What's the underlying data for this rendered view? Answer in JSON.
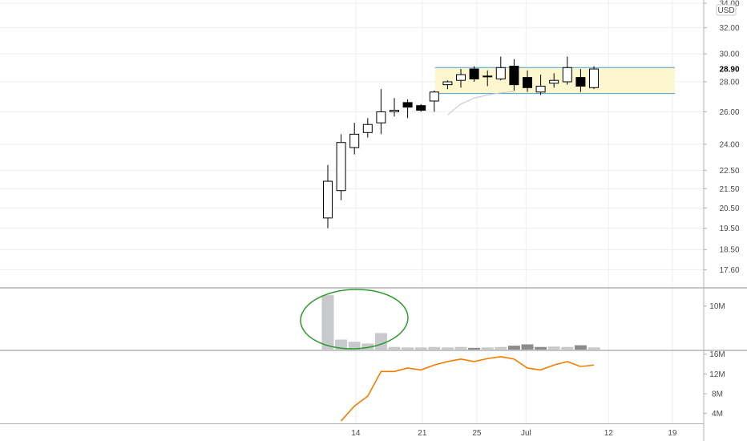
{
  "chart_data": {
    "type": "candlestick",
    "currency_label": "USD",
    "x_tick_labels": [
      "14",
      "21",
      "25",
      "Jul",
      "12",
      "19"
    ],
    "price_axis": {
      "ticks": [
        "34.00",
        "32.00",
        "30.00",
        "28.00",
        "26.00",
        "24.00",
        "22.50",
        "21.50",
        "20.50",
        "19.50",
        "18.50",
        "17.60"
      ],
      "range": [
        17.2,
        34.0
      ],
      "scale": "log",
      "current_price_label": "28.90"
    },
    "candles": [
      {
        "open": 20.0,
        "high": 22.8,
        "low": 19.5,
        "close": 21.9
      },
      {
        "open": 21.4,
        "high": 24.6,
        "low": 20.9,
        "close": 24.1
      },
      {
        "open": 23.8,
        "high": 25.3,
        "low": 23.4,
        "close": 24.6
      },
      {
        "open": 24.7,
        "high": 25.6,
        "low": 24.4,
        "close": 25.2
      },
      {
        "open": 25.3,
        "high": 27.5,
        "low": 24.6,
        "close": 26.0
      },
      {
        "open": 26.0,
        "high": 26.9,
        "low": 25.7,
        "close": 26.1
      },
      {
        "open": 26.6,
        "high": 26.8,
        "low": 25.6,
        "close": 26.3
      },
      {
        "open": 26.4,
        "high": 26.5,
        "low": 26.0,
        "close": 26.1
      },
      {
        "open": 26.7,
        "high": 27.4,
        "low": 26.0,
        "close": 27.3
      },
      {
        "open": 27.8,
        "high": 28.1,
        "low": 27.5,
        "close": 28.0
      },
      {
        "open": 28.1,
        "high": 28.9,
        "low": 27.6,
        "close": 28.5
      },
      {
        "open": 28.9,
        "high": 29.1,
        "low": 28.0,
        "close": 28.2
      },
      {
        "open": 28.4,
        "high": 28.8,
        "low": 27.7,
        "close": 28.4
      },
      {
        "open": 28.2,
        "high": 29.8,
        "low": 28.1,
        "close": 29.0
      },
      {
        "open": 29.1,
        "high": 29.6,
        "low": 27.4,
        "close": 27.8
      },
      {
        "open": 28.3,
        "high": 28.8,
        "low": 27.3,
        "close": 27.6
      },
      {
        "open": 27.3,
        "high": 28.5,
        "low": 27.1,
        "close": 27.7
      },
      {
        "open": 27.9,
        "high": 28.6,
        "low": 27.6,
        "close": 28.1
      },
      {
        "open": 28.0,
        "high": 29.8,
        "low": 27.8,
        "close": 29.0
      },
      {
        "open": 28.3,
        "high": 28.9,
        "low": 27.3,
        "close": 27.7
      },
      {
        "open": 27.6,
        "high": 29.1,
        "low": 27.5,
        "close": 28.9
      }
    ],
    "range_box": {
      "top": 29.0,
      "bottom": 27.2
    },
    "moving_average": [
      {
        "i": 9,
        "value": 25.8
      },
      {
        "i": 10,
        "value": 26.5
      },
      {
        "i": 11,
        "value": 26.9
      },
      {
        "i": 12,
        "value": 27.1
      },
      {
        "i": 13,
        "value": 27.25
      },
      {
        "i": 14,
        "value": 27.35
      }
    ],
    "volume_axis": {
      "ticks": [
        "10M"
      ],
      "range": [
        0,
        14
      ]
    },
    "volume": [
      {
        "value": 12.5,
        "down": false
      },
      {
        "value": 2.3,
        "down": false
      },
      {
        "value": 1.8,
        "down": false
      },
      {
        "value": 1.4,
        "down": false
      },
      {
        "value": 3.8,
        "down": false
      },
      {
        "value": 0.6,
        "down": false
      },
      {
        "value": 0.5,
        "down": false
      },
      {
        "value": 0.5,
        "down": false
      },
      {
        "value": 0.6,
        "down": false
      },
      {
        "value": 0.5,
        "down": false
      },
      {
        "value": 0.6,
        "down": false
      },
      {
        "value": 0.4,
        "down": true
      },
      {
        "value": 0.5,
        "down": false
      },
      {
        "value": 0.6,
        "down": false
      },
      {
        "value": 0.9,
        "down": true
      },
      {
        "value": 1.2,
        "down": true
      },
      {
        "value": 0.6,
        "down": true
      },
      {
        "value": 0.7,
        "down": false
      },
      {
        "value": 0.6,
        "down": false
      },
      {
        "value": 1.0,
        "down": true
      },
      {
        "value": 0.5,
        "down": false
      }
    ],
    "indicator_axis": {
      "ticks": [
        "16M",
        "12M",
        "8M",
        "4M"
      ],
      "range": [
        2.0,
        16.6
      ]
    },
    "indicator_line": [
      2.5,
      5.5,
      7.5,
      12.5,
      12.5,
      13.2,
      12.8,
      13.8,
      14.5,
      15.0,
      14.5,
      15.1,
      15.5,
      15.0,
      13.2,
      12.8,
      13.8,
      14.5,
      13.5,
      13.8
    ],
    "colors": {
      "up_body": "#ffffff",
      "down_body": "#000000",
      "candle_outline": "#000000",
      "range_fill": "#fdf7cf",
      "range_border": "#4a9fd4",
      "ma_line": "#c9cedb",
      "volume_up": "#c8c9cc",
      "volume_down": "#8a8b8d",
      "volume_circle": "#2e9b2e",
      "indicator_line": "#f57c00",
      "grid": "#eeeeee",
      "pane_separator": "#8e8e8e",
      "axis_border": "#b0b0b0"
    }
  }
}
